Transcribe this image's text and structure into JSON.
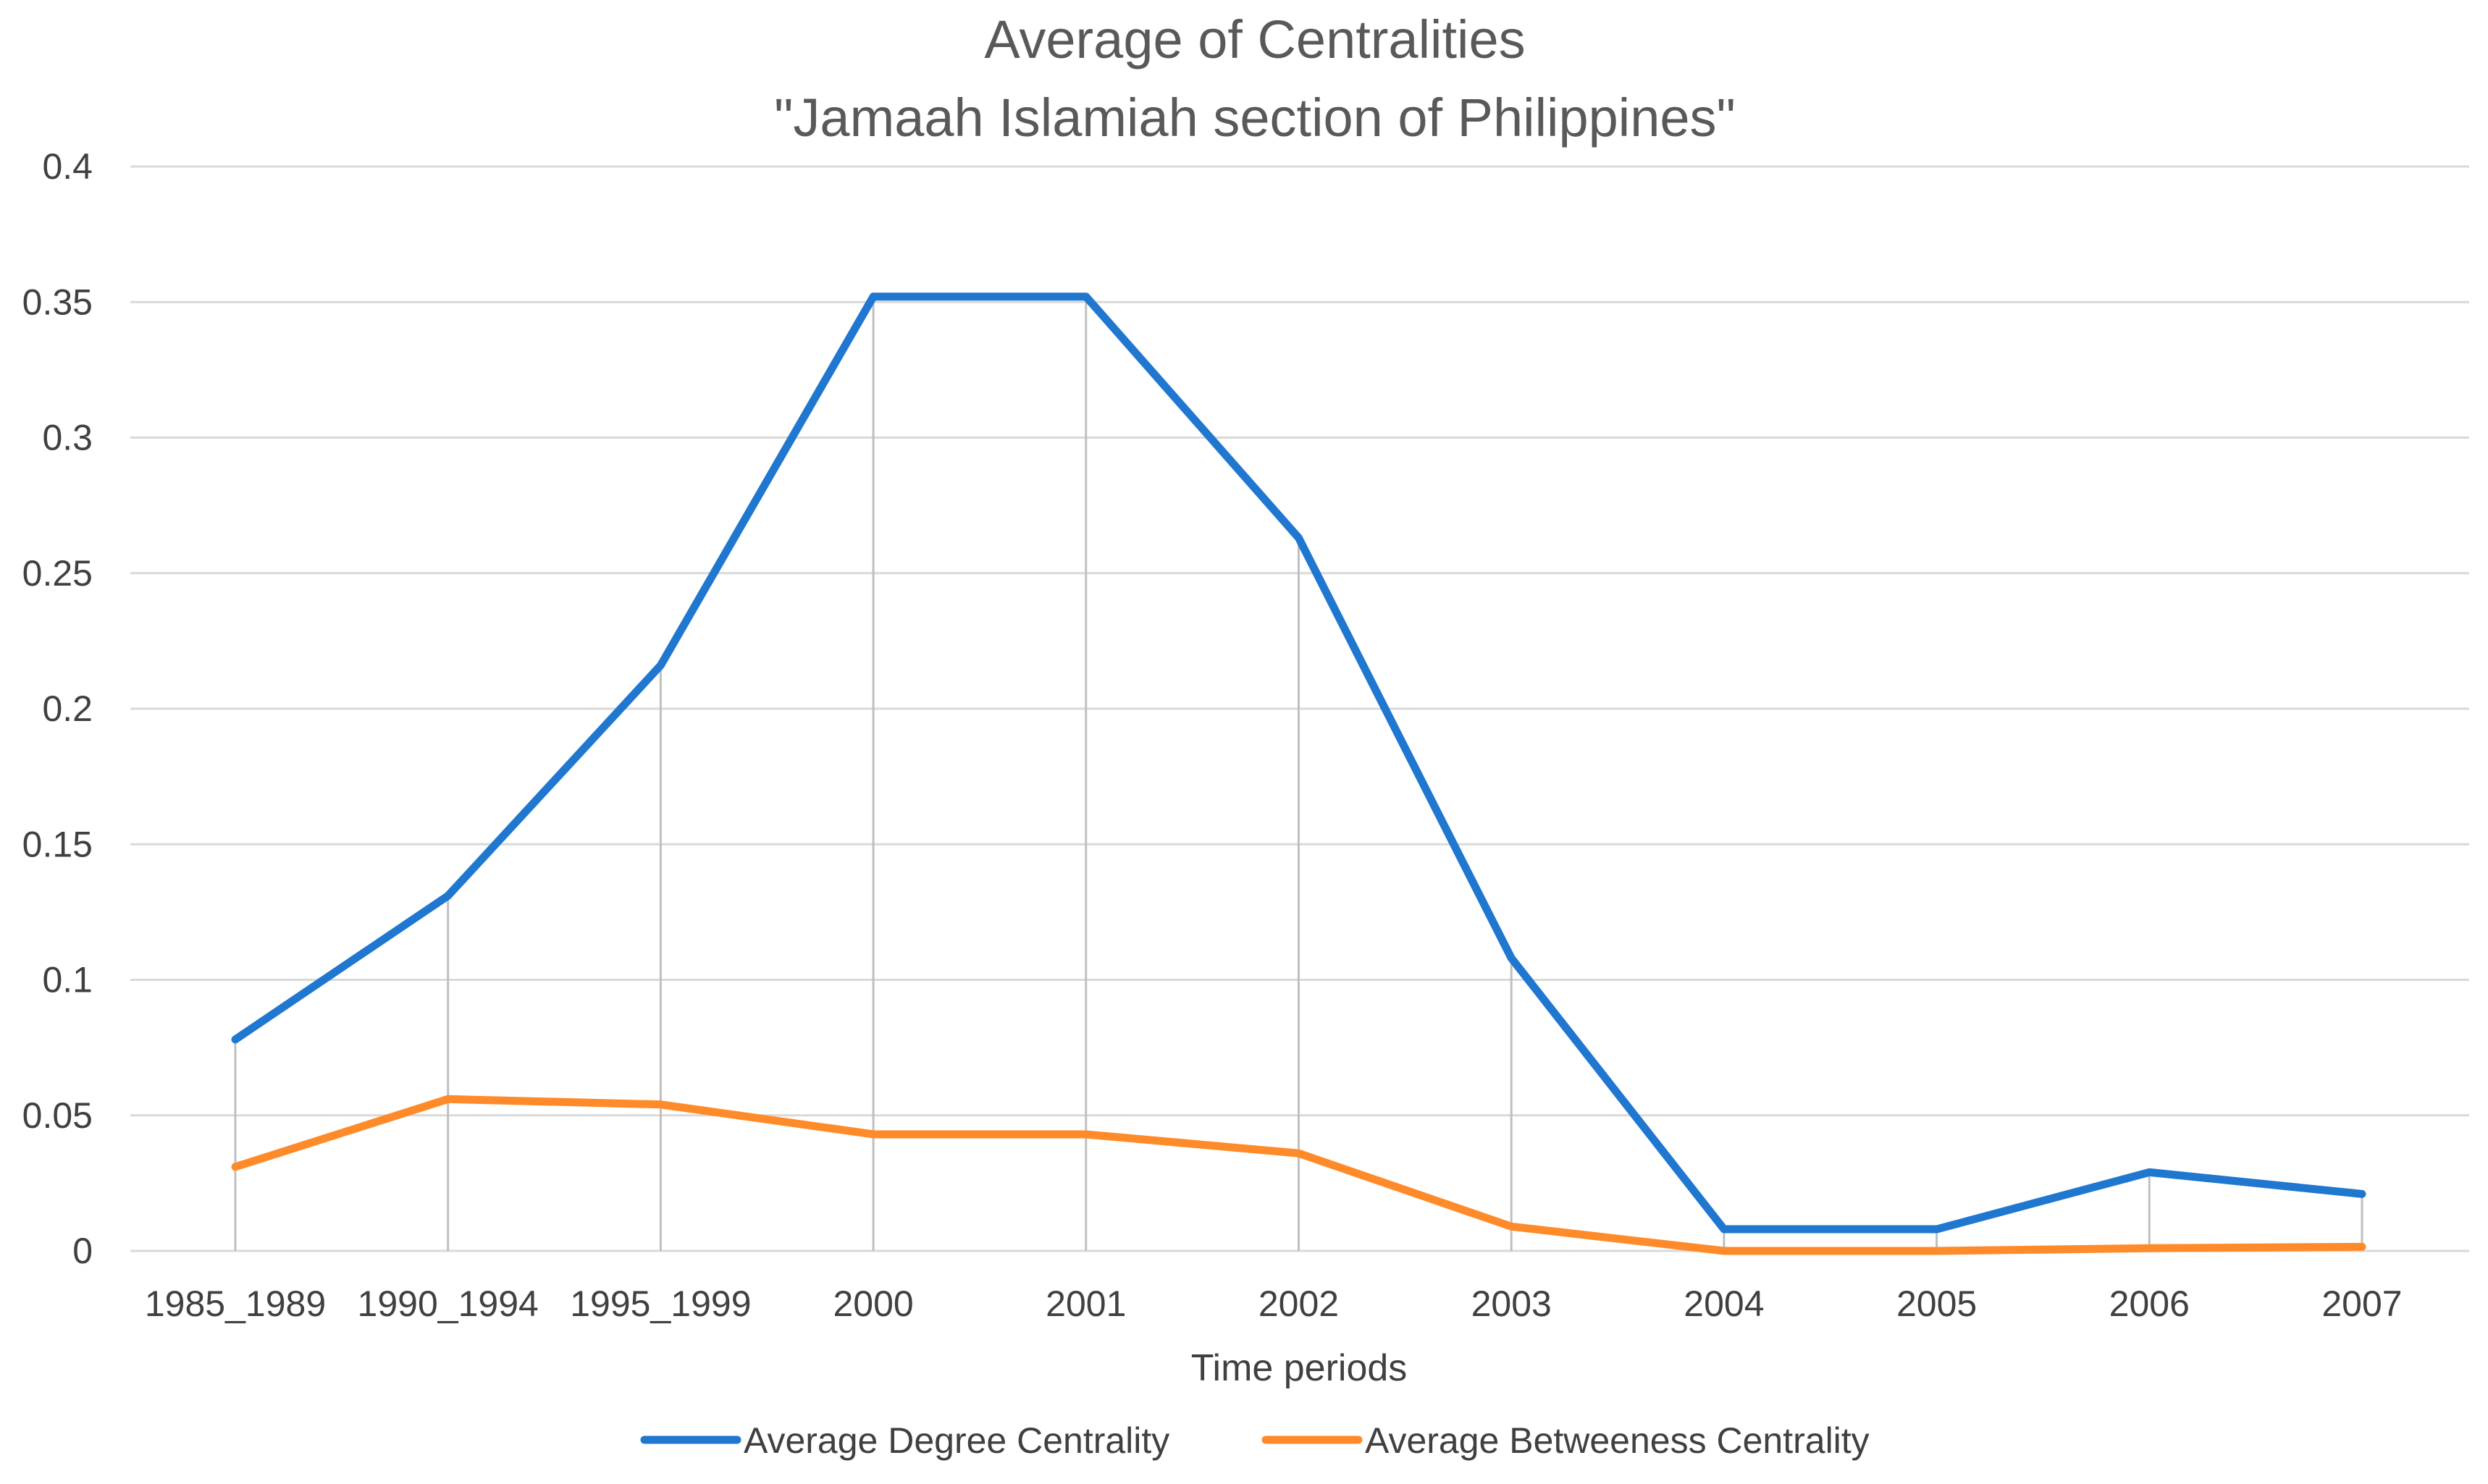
{
  "chart_data": {
    "type": "line",
    "title": "Average of Centralities",
    "subtitle": "\"Jamaah Islamiah section of Philippines\"",
    "xlabel": "Time periods",
    "ylabel": "",
    "ylim": [
      0,
      0.4
    ],
    "y_ticks": [
      0,
      0.05,
      0.1,
      0.15,
      0.2,
      0.25,
      0.3,
      0.35,
      0.4
    ],
    "y_tick_labels": [
      "0",
      "0.05",
      "0.1",
      "0.15",
      "0.2",
      "0.25",
      "0.3",
      "0.35",
      "0.4"
    ],
    "categories": [
      "1985_1989",
      "1990_1994",
      "1995_1999",
      "2000",
      "2001",
      "2002",
      "2003",
      "2004",
      "2005",
      "2006",
      "2007"
    ],
    "series": [
      {
        "name": "Average Degree Centrality",
        "color": "#1F77D0",
        "values": [
          0.078,
          0.131,
          0.216,
          0.352,
          0.352,
          0.263,
          0.108,
          0.008,
          0.008,
          0.029,
          0.021
        ]
      },
      {
        "name": "Average Betweeness Centrality",
        "color": "#FF8A2A",
        "values": [
          0.031,
          0.056,
          0.054,
          0.043,
          0.043,
          0.036,
          0.009,
          0.0,
          0.0,
          0.001,
          0.0015
        ]
      }
    ],
    "drop_lines": true,
    "grid": true,
    "legend_position": "bottom"
  },
  "colors": {
    "grid": "#D9D9D9",
    "drop_line": "#BFBFBF",
    "title": "#595959",
    "text": "#404040"
  }
}
